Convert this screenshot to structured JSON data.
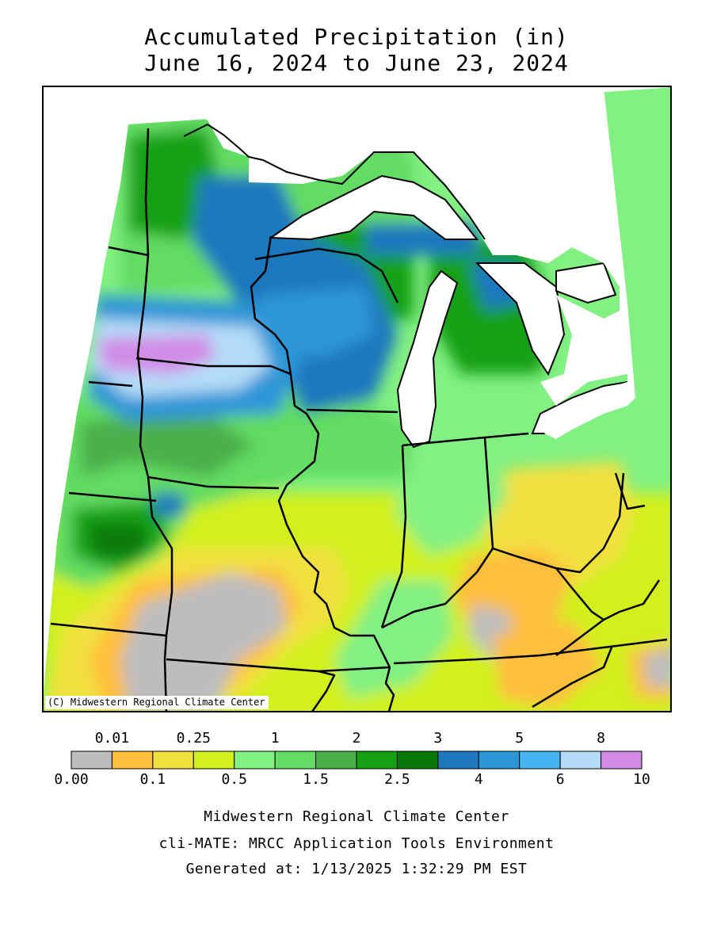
{
  "title": {
    "line1": "Accumulated Precipitation (in)",
    "line2": "June 16, 2024 to June 23, 2024"
  },
  "map": {
    "credit": "(C) Midwestern Regional Climate Center",
    "lake_color": "#ffffff",
    "border_color": "#000000"
  },
  "legend": {
    "bins": [
      {
        "range": "0.00-0.01",
        "color": "#bdbdbd"
      },
      {
        "range": "0.01-0.1",
        "color": "#ffbe3c"
      },
      {
        "range": "0.1-0.25",
        "color": "#f2e040"
      },
      {
        "range": "0.25-0.5",
        "color": "#d2f01e"
      },
      {
        "range": "0.5-1",
        "color": "#82f082"
      },
      {
        "range": "1-1.5",
        "color": "#62dc62"
      },
      {
        "range": "1.5-2",
        "color": "#4baf4b"
      },
      {
        "range": "2-2.5",
        "color": "#14a014"
      },
      {
        "range": "2.5-3",
        "color": "#087808"
      },
      {
        "range": "3-4",
        "color": "#1e78be"
      },
      {
        "range": "4-5",
        "color": "#2d96d7"
      },
      {
        "range": "5-6",
        "color": "#46b4f0"
      },
      {
        "range": "6-8",
        "color": "#b4dcf8"
      },
      {
        "range": "8-10",
        "color": "#d28ce6"
      }
    ],
    "top_labels": [
      "0.01",
      "0.25",
      "1",
      "2",
      "3",
      "5",
      "8"
    ],
    "bottom_labels": [
      "0.00",
      "0.1",
      "0.5",
      "1.5",
      "2.5",
      "4",
      "6",
      "10"
    ]
  },
  "footer": {
    "line1": "Midwestern Regional Climate Center",
    "line2": "cli-MATE: MRCC Application Tools Environment",
    "line3": "Generated at: 1/13/2025 1:32:29 PM EST"
  }
}
